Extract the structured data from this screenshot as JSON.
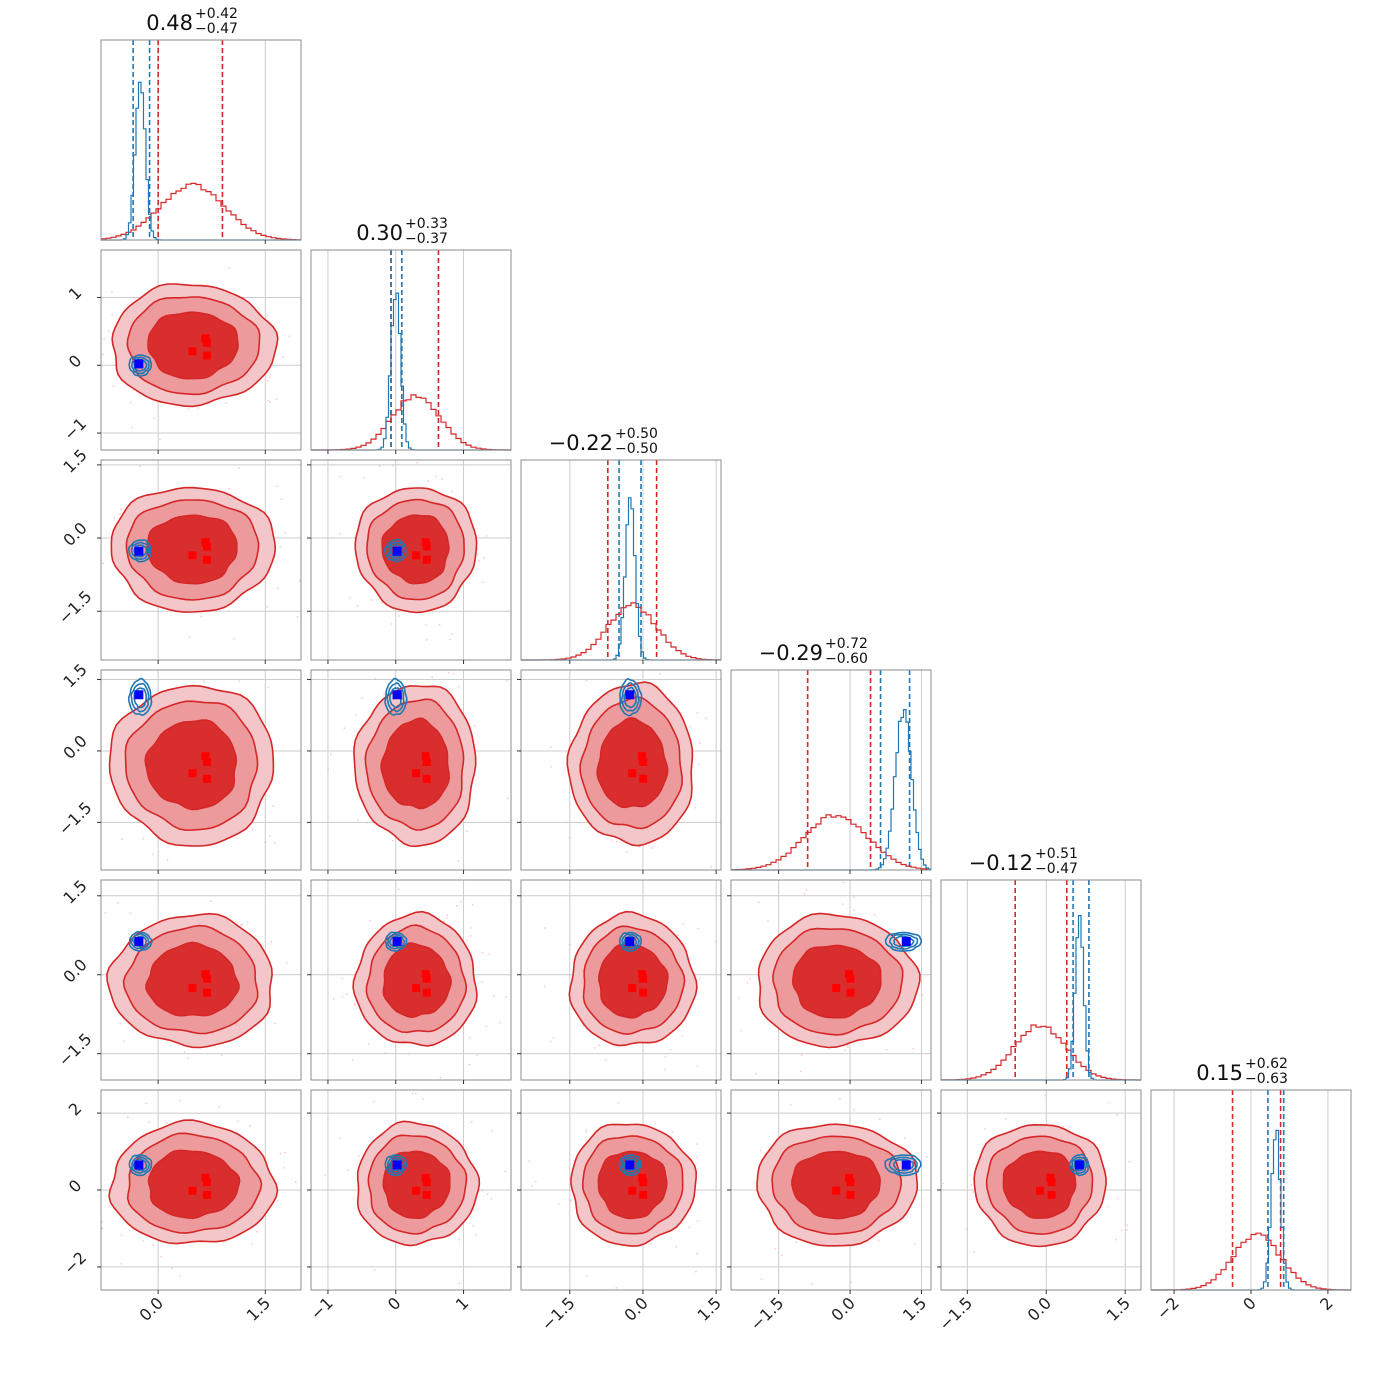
{
  "chart_data": {
    "type": "corner",
    "n_params": 6,
    "ranges": [
      [
        -0.8,
        2.0
      ],
      [
        -1.25,
        1.7
      ],
      [
        -2.5,
        1.6
      ],
      [
        -2.5,
        1.7
      ],
      [
        -2.0,
        1.8
      ],
      [
        -2.6,
        2.6
      ]
    ],
    "ticks": [
      {
        "values": [
          0.0,
          1.5
        ],
        "labels": [
          "0.0",
          "1.5"
        ]
      },
      {
        "values": [
          -1,
          0,
          1
        ],
        "labels": [
          "−1",
          "0",
          "1"
        ]
      },
      {
        "values": [
          -1.5,
          0.0,
          1.5
        ],
        "labels": [
          "−1.5",
          "0.0",
          "1.5"
        ]
      },
      {
        "values": [
          -1.5,
          0.0,
          1.5
        ],
        "labels": [
          "−1.5",
          "0.0",
          "1.5"
        ]
      },
      {
        "values": [
          -1.5,
          0.0,
          1.5
        ],
        "labels": [
          "−1.5",
          "0.0",
          "1.5"
        ]
      },
      {
        "values": [
          -2,
          0,
          2
        ],
        "labels": [
          "−2",
          "0",
          "2"
        ]
      }
    ],
    "titles": [
      {
        "median": "0.48",
        "plus": "+0.42",
        "minus": "−0.47"
      },
      {
        "median": "0.30",
        "plus": "+0.33",
        "minus": "−0.37"
      },
      {
        "median": "−0.22",
        "plus": "+0.50",
        "minus": "−0.50"
      },
      {
        "median": "−0.29",
        "plus": "+0.72",
        "minus": "−0.60"
      },
      {
        "median": "−0.12",
        "plus": "+0.51",
        "minus": "−0.47"
      },
      {
        "median": "0.15",
        "plus": "+0.62",
        "minus": "−0.63"
      }
    ],
    "series": [
      {
        "color": "#d62728",
        "means": [
          0.48,
          0.3,
          -0.22,
          -0.29,
          -0.12,
          0.15
        ],
        "sigmas": [
          0.45,
          0.35,
          0.5,
          0.66,
          0.49,
          0.62
        ],
        "quantile_lines": [
          [
            0.0,
            0.9
          ],
          [
            -0.07,
            0.63
          ],
          [
            -0.72,
            0.28
          ],
          [
            -0.89,
            0.43
          ],
          [
            -0.59,
            0.39
          ],
          [
            -0.48,
            0.77
          ]
        ]
      },
      {
        "color": "#1f77b4",
        "means": [
          -0.25,
          0.0,
          -0.26,
          1.12,
          0.63,
          0.65
        ],
        "sigmas": [
          0.07,
          0.07,
          0.1,
          0.17,
          0.08,
          0.12
        ],
        "quantile_lines": [
          [
            -0.35,
            -0.12
          ],
          [
            -0.07,
            0.09
          ],
          [
            -0.49,
            -0.04
          ],
          [
            0.64,
            1.25
          ],
          [
            0.51,
            0.81
          ],
          [
            0.44,
            0.85
          ]
        ]
      }
    ],
    "truth_markers_red": [
      [
        0.0,
        0.3
      ],
      [
        0.5,
        -0.1
      ],
      [
        0.5,
        0.5
      ],
      [
        0.45,
        -0.3
      ]
    ],
    "truth_marker_blue": [
      -0.27,
      0.02,
      -0.27,
      1.18,
      0.63,
      0.65
    ],
    "grid": true
  }
}
